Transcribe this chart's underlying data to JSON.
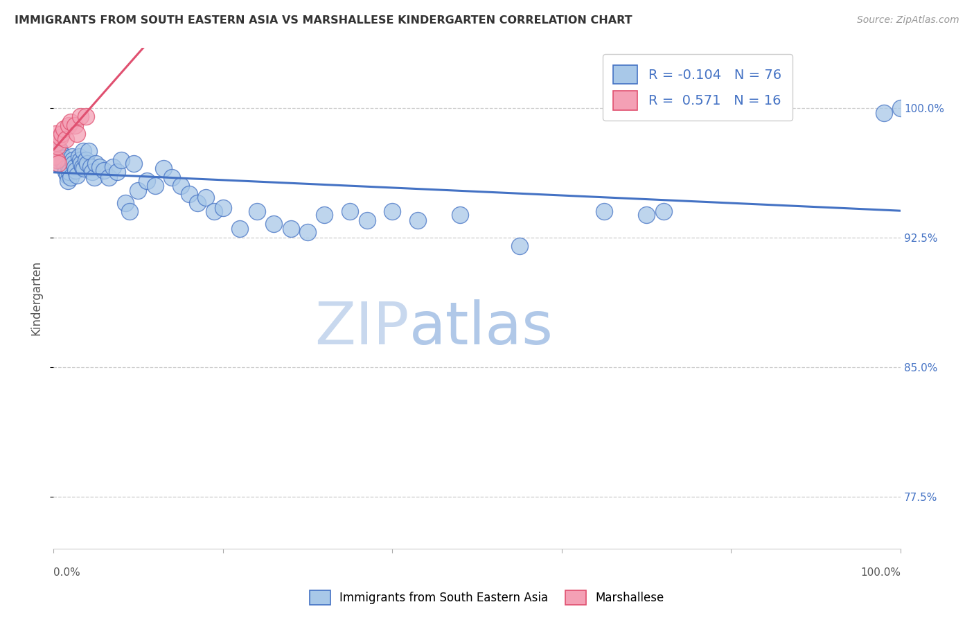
{
  "title": "IMMIGRANTS FROM SOUTH EASTERN ASIA VS MARSHALLESE KINDERGARTEN CORRELATION CHART",
  "source": "Source: ZipAtlas.com",
  "ylabel": "Kindergarten",
  "ylabel_right_ticks": [
    0.775,
    0.85,
    0.925,
    1.0
  ],
  "ylabel_right_labels": [
    "77.5%",
    "85.0%",
    "92.5%",
    "100.0%"
  ],
  "legend_blue_r": -0.104,
  "legend_blue_n": 76,
  "legend_pink_r": 0.571,
  "legend_pink_n": 16,
  "blue_color": "#a8c8e8",
  "pink_color": "#f4a0b5",
  "blue_line_color": "#4472c4",
  "pink_line_color": "#e05070",
  "blue_scatter": {
    "x": [
      0.001,
      0.002,
      0.003,
      0.004,
      0.005,
      0.006,
      0.007,
      0.008,
      0.009,
      0.01,
      0.011,
      0.012,
      0.013,
      0.014,
      0.015,
      0.016,
      0.017,
      0.018,
      0.019,
      0.02,
      0.022,
      0.023,
      0.024,
      0.025,
      0.026,
      0.028,
      0.03,
      0.032,
      0.033,
      0.034,
      0.035,
      0.036,
      0.038,
      0.04,
      0.042,
      0.044,
      0.046,
      0.048,
      0.05,
      0.055,
      0.06,
      0.065,
      0.07,
      0.075,
      0.08,
      0.085,
      0.09,
      0.095,
      0.1,
      0.11,
      0.12,
      0.13,
      0.14,
      0.15,
      0.16,
      0.17,
      0.18,
      0.19,
      0.2,
      0.22,
      0.24,
      0.26,
      0.28,
      0.3,
      0.32,
      0.35,
      0.37,
      0.4,
      0.43,
      0.48,
      0.55,
      0.65,
      0.7,
      0.72,
      0.98,
      1.0
    ],
    "y": [
      0.98,
      0.975,
      0.982,
      0.978,
      0.972,
      0.968,
      0.976,
      0.974,
      0.97,
      0.973,
      0.969,
      0.971,
      0.967,
      0.965,
      0.963,
      0.961,
      0.958,
      0.966,
      0.963,
      0.96,
      0.972,
      0.97,
      0.968,
      0.966,
      0.964,
      0.961,
      0.972,
      0.97,
      0.968,
      0.966,
      0.975,
      0.965,
      0.97,
      0.968,
      0.975,
      0.966,
      0.963,
      0.96,
      0.968,
      0.966,
      0.964,
      0.96,
      0.966,
      0.963,
      0.97,
      0.945,
      0.94,
      0.968,
      0.952,
      0.958,
      0.955,
      0.965,
      0.96,
      0.955,
      0.95,
      0.945,
      0.948,
      0.94,
      0.942,
      0.93,
      0.94,
      0.933,
      0.93,
      0.928,
      0.938,
      0.94,
      0.935,
      0.94,
      0.935,
      0.938,
      0.92,
      0.94,
      0.938,
      0.94,
      0.997,
      1.0
    ]
  },
  "pink_scatter": {
    "x": [
      0.001,
      0.002,
      0.003,
      0.004,
      0.005,
      0.006,
      0.008,
      0.01,
      0.012,
      0.015,
      0.018,
      0.02,
      0.025,
      0.028,
      0.032,
      0.038
    ],
    "y": [
      0.972,
      0.985,
      0.98,
      0.97,
      0.978,
      0.968,
      0.983,
      0.985,
      0.988,
      0.982,
      0.99,
      0.992,
      0.99,
      0.985,
      0.995,
      0.995
    ]
  },
  "xmin": 0.0,
  "xmax": 1.0,
  "ymin": 0.745,
  "ymax": 1.035,
  "background_color": "#ffffff",
  "grid_color": "#cccccc",
  "watermark_zip": "ZIP",
  "watermark_atlas": "atlas",
  "watermark_color_zip": "#c8d8ee",
  "watermark_color_atlas": "#b0c8e8"
}
